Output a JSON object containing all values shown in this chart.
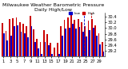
{
  "title": "Milwaukee Weather Barometric Pressure\nDaily High/Low",
  "ylim": [
    29.0,
    30.55
  ],
  "yticks": [
    29.2,
    29.4,
    29.6,
    29.8,
    30.0,
    30.2,
    30.4
  ],
  "background_color": "#ffffff",
  "high_color": "#cc0000",
  "low_color": "#0000cc",
  "highs": [
    30.18,
    29.9,
    30.32,
    30.35,
    30.38,
    30.22,
    30.15,
    30.08,
    30.42,
    29.95,
    29.62,
    29.52,
    29.92,
    29.8,
    29.48,
    29.32,
    29.48,
    30.08,
    30.28,
    30.38,
    30.45,
    30.3,
    30.32,
    30.22,
    30.08,
    30.25,
    30.32,
    30.1,
    29.82,
    29.52
  ],
  "lows": [
    29.82,
    29.58,
    29.72,
    30.08,
    30.1,
    29.88,
    29.82,
    29.68,
    30.08,
    29.52,
    29.28,
    29.08,
    29.52,
    29.4,
    29.08,
    28.98,
    29.08,
    29.72,
    29.98,
    30.02,
    30.15,
    29.98,
    30.05,
    29.88,
    29.7,
    29.92,
    30.02,
    29.72,
    29.42,
    29.18
  ],
  "n_days": 30,
  "xtick_step": 2,
  "dashed_lines": [
    24,
    26
  ],
  "dashed_colors": [
    "#0000cc",
    "#cc0000"
  ],
  "legend_labels": [
    "High",
    "Low"
  ],
  "title_fontsize": 4.5,
  "tick_fontsize": 3.8
}
